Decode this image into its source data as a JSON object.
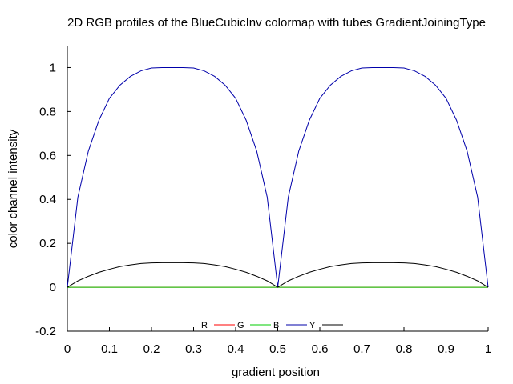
{
  "chart_data": {
    "type": "line",
    "title": "2D RGB profiles of the BlueCubicInv colormap with tubes GradientJoiningType",
    "xlabel": "gradient position",
    "ylabel": "color channel intensity",
    "xlim": [
      0,
      1
    ],
    "ylim": [
      -0.2,
      1.1
    ],
    "xticks": [
      0,
      0.1,
      0.2,
      0.3,
      0.4,
      0.5,
      0.6,
      0.7,
      0.8,
      0.9,
      1
    ],
    "xtick_labels": [
      "0",
      "0.1",
      "0.2",
      "0.3",
      "0.4",
      "0.5",
      "0.6",
      "0.7",
      "0.8",
      "0.9",
      "1"
    ],
    "yticks": [
      -0.2,
      0,
      0.2,
      0.4,
      0.6,
      0.8,
      1
    ],
    "ytick_labels": [
      "-0.2",
      "0",
      "0.2",
      "0.4",
      "0.6",
      "0.8",
      "1"
    ],
    "grid": false,
    "legend_position": "bottom-center",
    "x": [
      0,
      0.025,
      0.05,
      0.075,
      0.1,
      0.125,
      0.15,
      0.175,
      0.2,
      0.225,
      0.25,
      0.275,
      0.3,
      0.325,
      0.35,
      0.375,
      0.4,
      0.425,
      0.45,
      0.475,
      0.5,
      0.525,
      0.55,
      0.575,
      0.6,
      0.625,
      0.65,
      0.675,
      0.7,
      0.725,
      0.75,
      0.775,
      0.8,
      0.825,
      0.85,
      0.875,
      0.9,
      0.925,
      0.95,
      0.975,
      1
    ],
    "series": [
      {
        "name": "R",
        "color": "#ff0000",
        "values": [
          0,
          0,
          0,
          0,
          0,
          0,
          0,
          0,
          0,
          0,
          0,
          0,
          0,
          0,
          0,
          0,
          0,
          0,
          0,
          0,
          0,
          0,
          0,
          0,
          0,
          0,
          0,
          0,
          0,
          0,
          0,
          0,
          0,
          0,
          0,
          0,
          0,
          0,
          0,
          0,
          0
        ]
      },
      {
        "name": "G",
        "color": "#00cc00",
        "values": [
          0,
          0,
          0,
          0,
          0,
          0,
          0,
          0,
          0,
          0,
          0,
          0,
          0,
          0,
          0,
          0,
          0,
          0,
          0,
          0,
          0,
          0,
          0,
          0,
          0,
          0,
          0,
          0,
          0,
          0,
          0,
          0,
          0,
          0,
          0,
          0,
          0,
          0,
          0,
          0,
          0
        ]
      },
      {
        "name": "B",
        "color": "#0000aa",
        "values": [
          0,
          0.41,
          0.62,
          0.76,
          0.86,
          0.92,
          0.96,
          0.985,
          0.998,
          1.0,
          1.0,
          1.0,
          0.998,
          0.985,
          0.96,
          0.92,
          0.86,
          0.76,
          0.62,
          0.41,
          0,
          0.41,
          0.62,
          0.76,
          0.86,
          0.92,
          0.96,
          0.985,
          0.998,
          1.0,
          1.0,
          1.0,
          0.998,
          0.985,
          0.96,
          0.92,
          0.86,
          0.76,
          0.62,
          0.41,
          0
        ]
      },
      {
        "name": "Y",
        "color": "#000000",
        "values": [
          0,
          0.029,
          0.05,
          0.068,
          0.082,
          0.094,
          0.102,
          0.108,
          0.111,
          0.112,
          0.112,
          0.112,
          0.111,
          0.108,
          0.102,
          0.094,
          0.082,
          0.068,
          0.05,
          0.029,
          0,
          0.029,
          0.05,
          0.068,
          0.082,
          0.094,
          0.102,
          0.108,
          0.111,
          0.112,
          0.112,
          0.112,
          0.111,
          0.108,
          0.102,
          0.094,
          0.082,
          0.068,
          0.05,
          0.029,
          0
        ]
      }
    ]
  }
}
